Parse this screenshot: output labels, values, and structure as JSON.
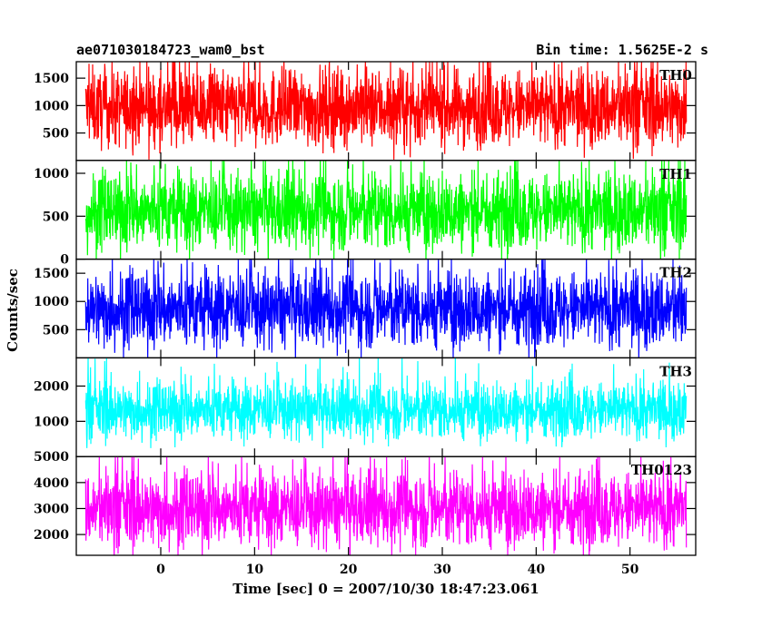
{
  "chart_data": {
    "type": "line",
    "title": "ae071030184723_wam0_bst",
    "subtitle": "Bin time: 1.5625E-2 s",
    "xlabel": "Time [sec] 0 = 2007/10/30 18:47:23.061",
    "ylabel": "Counts/sec",
    "xlim": [
      -9,
      57
    ],
    "x_range": [
      -8,
      56
    ],
    "xticks": [
      0,
      10,
      20,
      30,
      40,
      50
    ],
    "grid": false,
    "colors": {
      "TH0": "#ff0000",
      "TH1": "#00ff00",
      "TH2": "#0000ff",
      "TH3": "#00ffff",
      "TH0123": "#ff00ff"
    },
    "series": [
      {
        "name": "TH0",
        "ylim": [
          0,
          1800
        ],
        "yticks": [
          500,
          1000,
          1500
        ],
        "yticklabels": [
          "500",
          "1000",
          "1500"
        ],
        "mean": 950,
        "low": 150,
        "high": 1800
      },
      {
        "name": "TH1",
        "ylim": [
          0,
          1150
        ],
        "yticks": [
          0,
          500,
          1000
        ],
        "yticklabels": [
          "0",
          "500",
          "1000"
        ],
        "mean": 550,
        "low": 40,
        "high": 1150
      },
      {
        "name": "TH2",
        "ylim": [
          0,
          1750
        ],
        "yticks": [
          500,
          1000,
          1500
        ],
        "yticklabels": [
          "500",
          "1000",
          "1500"
        ],
        "mean": 850,
        "low": 80,
        "high": 1750
      },
      {
        "name": "TH3",
        "ylim": [
          0,
          2800
        ],
        "yticks": [
          1000,
          2000
        ],
        "yticklabels": [
          "1000",
          "2000"
        ],
        "mean": 1300,
        "low": 380,
        "high": 2800
      },
      {
        "name": "TH0123",
        "ylim": [
          1200,
          5000
        ],
        "yticks": [
          2000,
          3000,
          4000,
          5000
        ],
        "yticklabels": [
          "2000",
          "3000",
          "4000",
          "5000"
        ],
        "mean": 2950,
        "low": 1300,
        "high": 5000
      }
    ]
  }
}
